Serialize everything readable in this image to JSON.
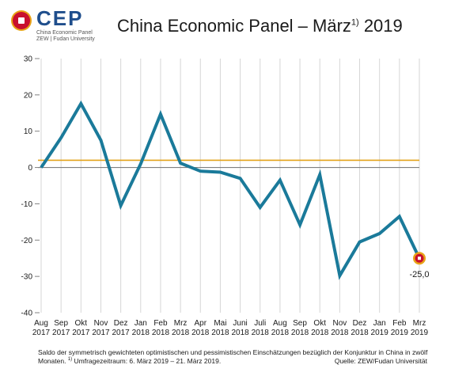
{
  "header": {
    "logo_text": "CEP",
    "logo_sub1": "China Economic Panel",
    "logo_sub2": "ZEW | Fudan University",
    "title_main": "China Economic Panel – März",
    "title_sup": "1)",
    "title_year": " 2019"
  },
  "chart_data": {
    "type": "line",
    "categories": [
      [
        "Aug",
        "2017"
      ],
      [
        "Sep",
        "2017"
      ],
      [
        "Okt",
        "2017"
      ],
      [
        "Nov",
        "2017"
      ],
      [
        "Dez",
        "2017"
      ],
      [
        "Jan",
        "2018"
      ],
      [
        "Feb",
        "2018"
      ],
      [
        "Mrz",
        "2018"
      ],
      [
        "Apr",
        "2018"
      ],
      [
        "Mai",
        "2018"
      ],
      [
        "Juni",
        "2018"
      ],
      [
        "Juli",
        "2018"
      ],
      [
        "Aug",
        "2018"
      ],
      [
        "Sep",
        "2018"
      ],
      [
        "Okt",
        "2018"
      ],
      [
        "Nov",
        "2018"
      ],
      [
        "Dez",
        "2018"
      ],
      [
        "Jan",
        "2019"
      ],
      [
        "Feb",
        "2019"
      ],
      [
        "Mrz",
        "2019"
      ]
    ],
    "series": [
      {
        "values": [
          0.0,
          8.2,
          17.6,
          7.5,
          -10.5,
          1.0,
          14.7,
          1.2,
          -1.0,
          -1.3,
          -3.0,
          -11.0,
          -3.5,
          -15.8,
          -2.0,
          -29.8,
          -20.5,
          -18.2,
          -13.5,
          -25.0
        ]
      }
    ],
    "reference_line": 2.0,
    "ylim": [
      -40,
      30
    ],
    "yticks": [
      30,
      20,
      10,
      0,
      -10,
      -20,
      -30,
      -40
    ],
    "last_point_label": "-25,0",
    "grid": "vertical",
    "colors": {
      "line": "#1a7a9a",
      "reference": "#e3a21a",
      "zero": "#808080",
      "grid": "#d6d6d6",
      "marker_outer": "#e8a317",
      "marker_inner": "#c8102e"
    }
  },
  "footer": {
    "line1": "Saldo der symmetrisch gewichteten optimistischen und pessimistischen Einschätzungen bezüglich der Konjunktur in China in zwölf",
    "line2_pre": "Monaten. ",
    "line2_sup": "1)",
    "line2_post": " Umfragezeitraum: 6. März 2019 – 21. März 2019.",
    "source": "Quelle: ZEW/Fudan Universität"
  }
}
